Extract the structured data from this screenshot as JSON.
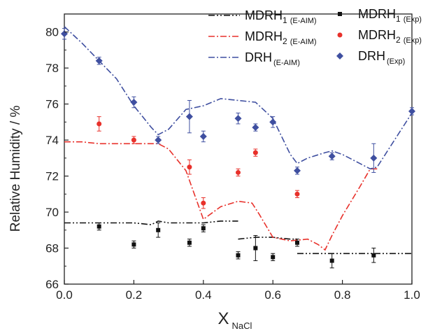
{
  "chart_data": {
    "type": "scatter",
    "title": "",
    "xlabel_main": "X",
    "xlabel_sub": "NaCl",
    "ylabel": "Relative Humidity / %",
    "xlim": [
      0.0,
      1.0
    ],
    "ylim": [
      66,
      81
    ],
    "xticks": [
      0.0,
      0.2,
      0.4,
      0.6,
      0.8,
      1.0
    ],
    "xtick_labels": [
      "0.0",
      "0.2",
      "0.4",
      "0.6",
      "0.8",
      "1.0"
    ],
    "yticks": [
      66,
      68,
      70,
      72,
      74,
      76,
      78,
      80
    ],
    "ytick_labels": [
      "66",
      "68",
      "70",
      "72",
      "74",
      "76",
      "78",
      "80"
    ],
    "grid": false,
    "legend_placement": "top-right",
    "lines": [
      {
        "main": "MDRH",
        "index": "1",
        "sub": "(E-AIM)",
        "color": "#111111",
        "dash": "dash-dot-dot",
        "segments": [
          [
            [
              0.0,
              69.4
            ],
            [
              0.2,
              69.4
            ],
            [
              0.25,
              69.3
            ],
            [
              0.27,
              69.5
            ],
            [
              0.3,
              69.4
            ],
            [
              0.4,
              69.4
            ],
            [
              0.45,
              69.5
            ],
            [
              0.5,
              69.5
            ]
          ],
          [
            [
              0.5,
              68.5
            ],
            [
              0.55,
              68.6
            ],
            [
              0.6,
              68.6
            ],
            [
              0.65,
              68.5
            ],
            [
              0.67,
              68.5
            ]
          ],
          [
            [
              0.67,
              67.7
            ],
            [
              0.75,
              67.7
            ],
            [
              0.85,
              67.7
            ],
            [
              1.0,
              67.7
            ]
          ]
        ]
      },
      {
        "main": "MDRH",
        "index": "2",
        "sub": "(E-AIM)",
        "color": "#e8312b",
        "dash": "dash-dot",
        "segments": [
          [
            [
              0.0,
              73.9
            ],
            [
              0.05,
              73.9
            ],
            [
              0.1,
              73.8
            ],
            [
              0.2,
              73.8
            ],
            [
              0.27,
              73.8
            ],
            [
              0.3,
              73.5
            ],
            [
              0.35,
              72.3
            ],
            [
              0.4,
              69.6
            ],
            [
              0.45,
              70.3
            ],
            [
              0.5,
              70.6
            ],
            [
              0.54,
              70.5
            ],
            [
              0.56,
              69.9
            ],
            [
              0.6,
              68.6
            ],
            [
              0.65,
              68.4
            ],
            [
              0.7,
              68.5
            ],
            [
              0.73,
              68.2
            ],
            [
              0.75,
              67.9
            ],
            [
              0.77,
              68.7
            ],
            [
              0.8,
              69.8
            ],
            [
              0.85,
              71.4
            ],
            [
              0.88,
              72.4
            ],
            [
              0.9,
              72.4
            ]
          ]
        ]
      },
      {
        "main": "DRH",
        "index": "",
        "sub": "(E-AIM)",
        "color": "#3f4fa0",
        "dash": "dash-dot",
        "segments": [
          [
            [
              0.0,
              80.3
            ],
            [
              0.05,
              79.4
            ],
            [
              0.1,
              78.4
            ],
            [
              0.15,
              77.4
            ],
            [
              0.2,
              75.9
            ],
            [
              0.25,
              74.7
            ],
            [
              0.27,
              74.3
            ],
            [
              0.3,
              74.6
            ],
            [
              0.35,
              75.7
            ],
            [
              0.4,
              75.9
            ],
            [
              0.45,
              76.3
            ],
            [
              0.5,
              76.2
            ],
            [
              0.55,
              76.1
            ],
            [
              0.6,
              75.2
            ],
            [
              0.65,
              73.2
            ],
            [
              0.67,
              72.7
            ],
            [
              0.7,
              73.0
            ],
            [
              0.75,
              73.3
            ],
            [
              0.77,
              73.4
            ],
            [
              0.8,
              73.2
            ],
            [
              0.85,
              72.7
            ],
            [
              0.88,
              72.4
            ],
            [
              0.9,
              72.5
            ],
            [
              0.95,
              74.0
            ],
            [
              1.0,
              75.5
            ]
          ]
        ]
      }
    ],
    "series": [
      {
        "main": "MDRH",
        "index": "1",
        "sub": "(Exp)",
        "color": "#111111",
        "marker": "square",
        "points": [
          {
            "x": 0.1,
            "y": 69.2,
            "err": 0.2
          },
          {
            "x": 0.2,
            "y": 68.2,
            "err": 0.2
          },
          {
            "x": 0.27,
            "y": 69.0,
            "err": 0.4
          },
          {
            "x": 0.36,
            "y": 68.3,
            "err": 0.2
          },
          {
            "x": 0.4,
            "y": 69.1,
            "err": 0.2
          },
          {
            "x": 0.5,
            "y": 67.6,
            "err": 0.2
          },
          {
            "x": 0.55,
            "y": 68.0,
            "err": 0.7
          },
          {
            "x": 0.6,
            "y": 67.5,
            "err": 0.2
          },
          {
            "x": 0.67,
            "y": 68.3,
            "err": 0.2
          },
          {
            "x": 0.77,
            "y": 67.3,
            "err": 0.4
          },
          {
            "x": 0.89,
            "y": 67.6,
            "err": 0.4
          }
        ]
      },
      {
        "main": "MDRH",
        "index": "2",
        "sub": "(Exp)",
        "color": "#e8312b",
        "marker": "circle",
        "points": [
          {
            "x": 0.1,
            "y": 74.9,
            "err": 0.4
          },
          {
            "x": 0.2,
            "y": 74.0,
            "err": 0.2
          },
          {
            "x": 0.36,
            "y": 72.5,
            "err": 0.4
          },
          {
            "x": 0.4,
            "y": 70.5,
            "err": 0.3
          },
          {
            "x": 0.5,
            "y": 72.2,
            "err": 0.2
          },
          {
            "x": 0.55,
            "y": 73.3,
            "err": 0.2
          },
          {
            "x": 0.67,
            "y": 71.0,
            "err": 0.2
          }
        ]
      },
      {
        "main": "DRH",
        "index": "",
        "sub": "(Exp)",
        "color": "#3f4fa0",
        "marker": "diamond",
        "points": [
          {
            "x": 0.0,
            "y": 79.9,
            "err": 0.3
          },
          {
            "x": 0.1,
            "y": 78.4,
            "err": 0.2
          },
          {
            "x": 0.2,
            "y": 76.1,
            "err": 0.3
          },
          {
            "x": 0.27,
            "y": 74.0,
            "err": 0.2
          },
          {
            "x": 0.36,
            "y": 75.3,
            "err": 0.9
          },
          {
            "x": 0.4,
            "y": 74.2,
            "err": 0.3
          },
          {
            "x": 0.5,
            "y": 75.2,
            "err": 0.3
          },
          {
            "x": 0.55,
            "y": 74.7,
            "err": 0.2
          },
          {
            "x": 0.6,
            "y": 75.0,
            "err": 0.3
          },
          {
            "x": 0.67,
            "y": 72.3,
            "err": 0.2
          },
          {
            "x": 0.77,
            "y": 73.1,
            "err": 0.2
          },
          {
            "x": 0.89,
            "y": 73.0,
            "err": 0.8
          },
          {
            "x": 1.0,
            "y": 75.6,
            "err": 0.2
          }
        ]
      }
    ]
  }
}
